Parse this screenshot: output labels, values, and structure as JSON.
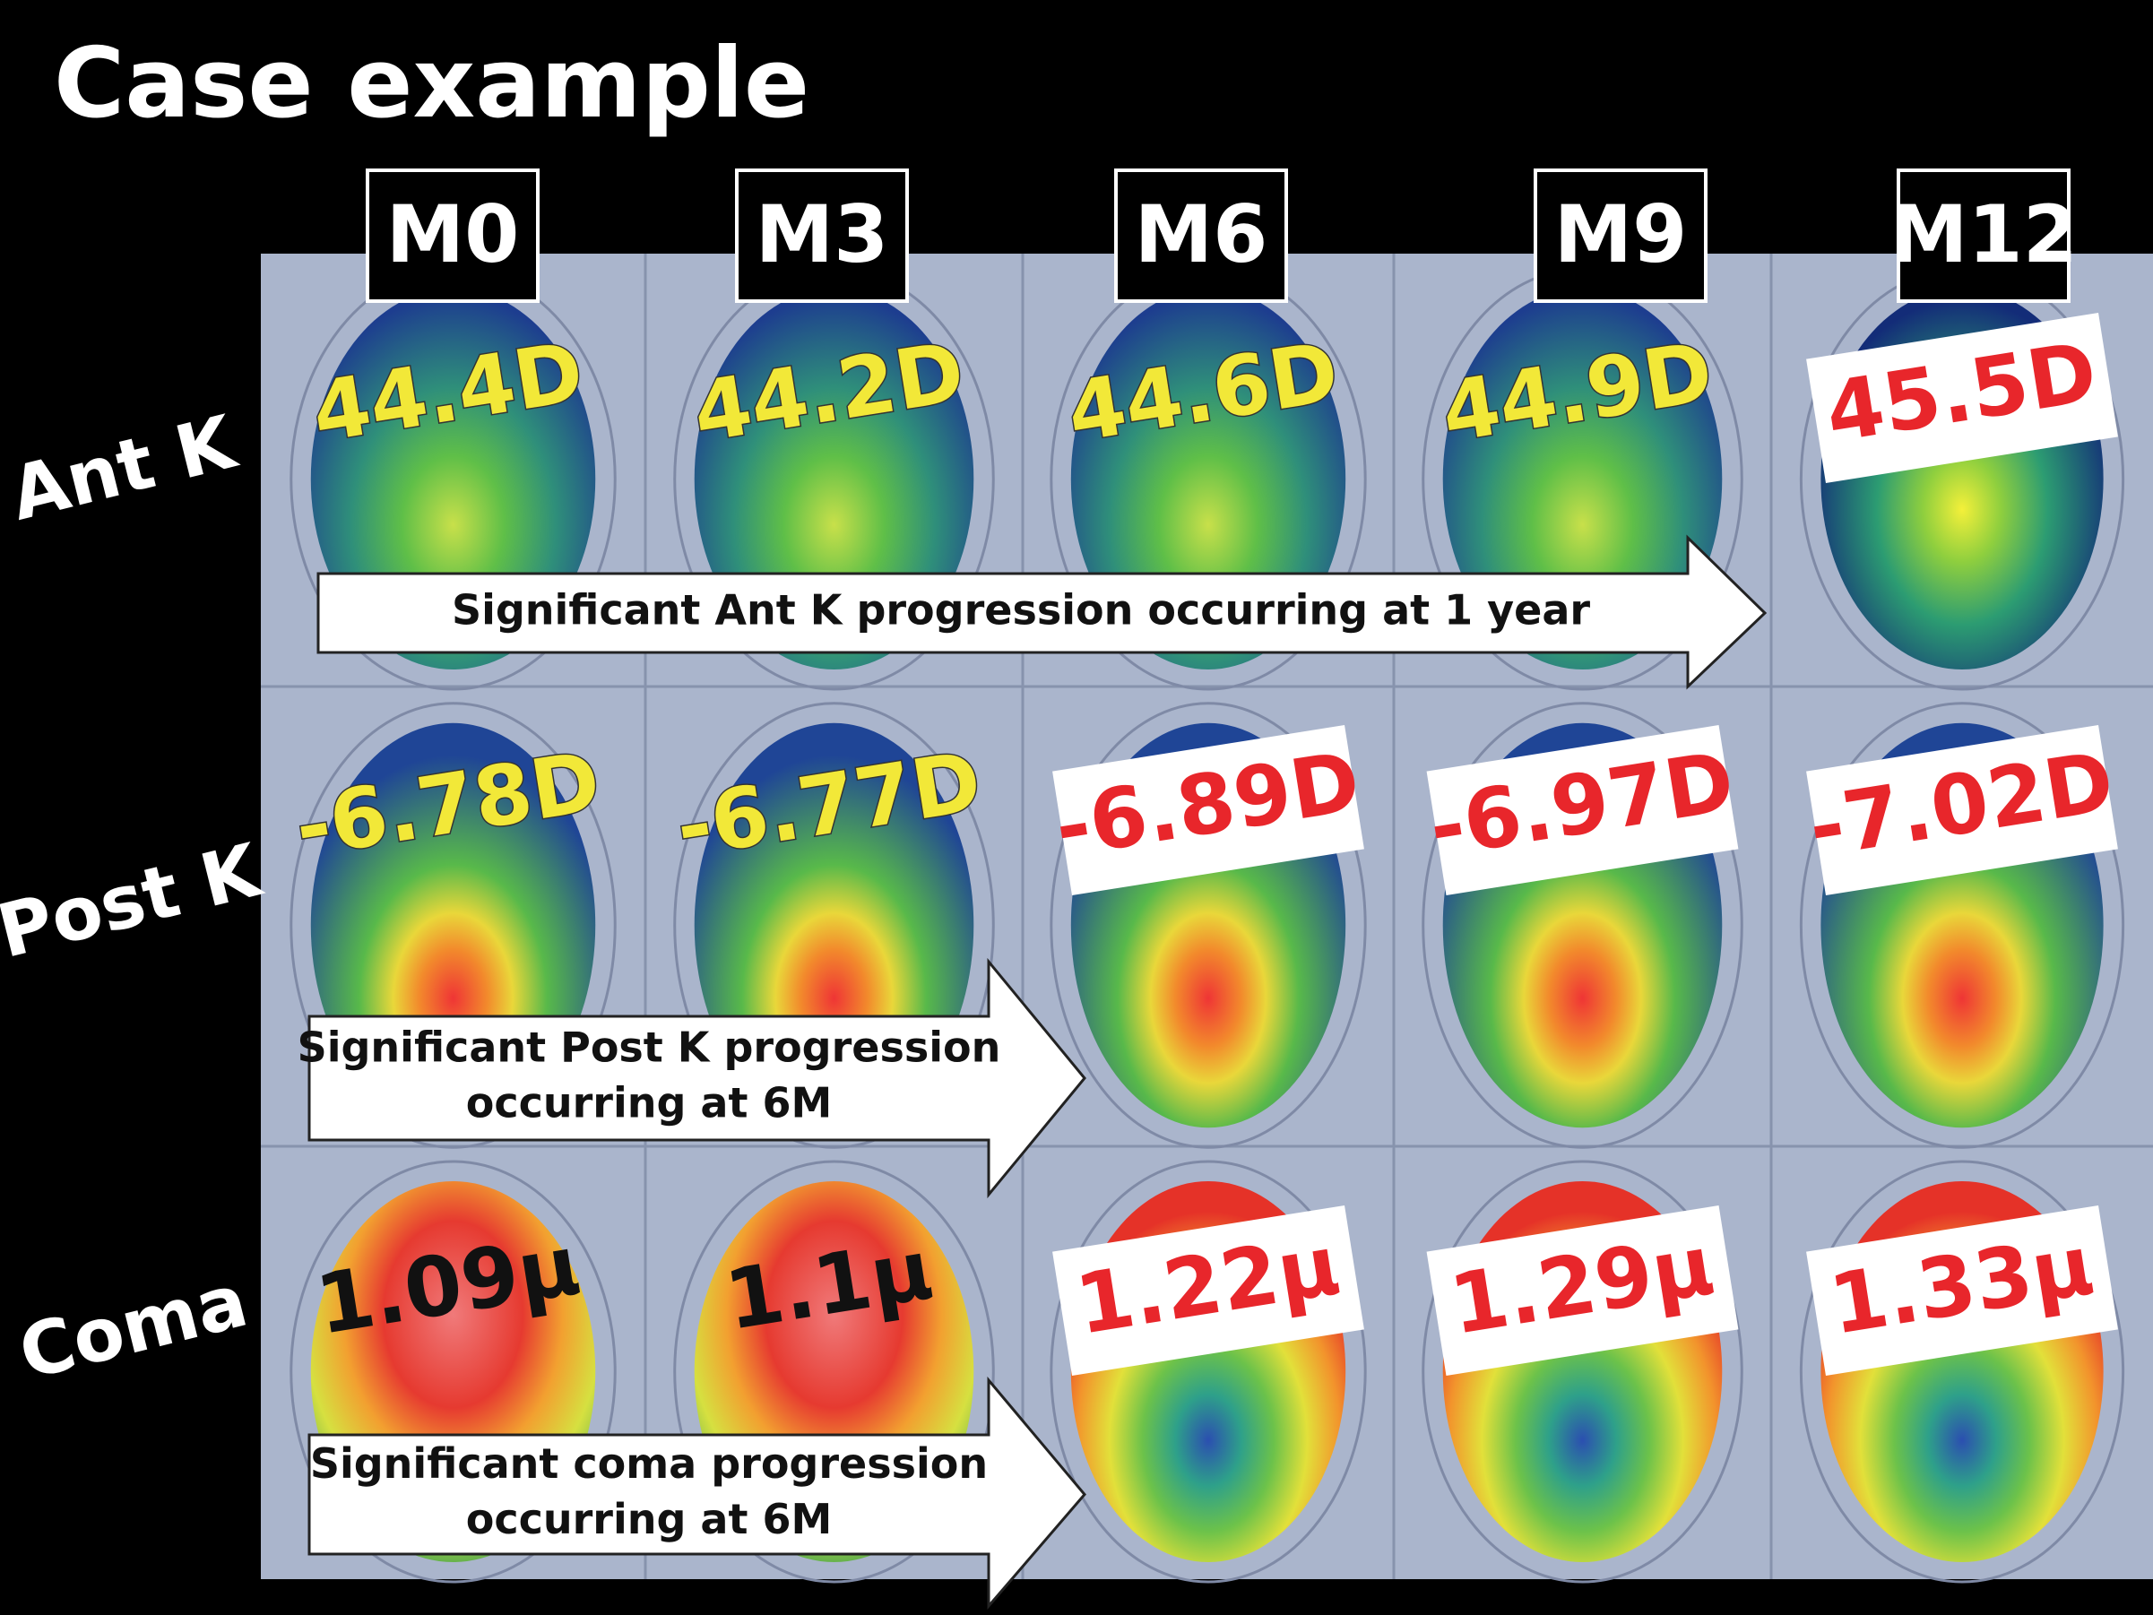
{
  "title": "Case example",
  "columns": [
    "M0",
    "M3",
    "M6",
    "M9",
    "M12"
  ],
  "rows": [
    {
      "label": "Ant K",
      "cells": [
        {
          "text": "44.4D",
          "color": "#f2e838",
          "boxed": false
        },
        {
          "text": "44.2D",
          "color": "#f2e838",
          "boxed": false
        },
        {
          "text": "44.6D",
          "color": "#f2e838",
          "boxed": false
        },
        {
          "text": "44.9D",
          "color": "#f2e838",
          "boxed": false
        },
        {
          "text": "45.5D",
          "color": "#e8262b",
          "boxed": true
        }
      ]
    },
    {
      "label": "Post K",
      "cells": [
        {
          "text": "-6.78D",
          "color": "#f2e838",
          "boxed": false
        },
        {
          "text": "-6.77D",
          "color": "#f2e838",
          "boxed": false
        },
        {
          "text": "-6.89D",
          "color": "#e8262b",
          "boxed": true
        },
        {
          "text": "-6.97D",
          "color": "#e8262b",
          "boxed": true
        },
        {
          "text": "-7.02D",
          "color": "#e8262b",
          "boxed": true
        }
      ]
    },
    {
      "label": "Coma",
      "cells": [
        {
          "text": "1.09μ",
          "color": "#111111",
          "boxed": false
        },
        {
          "text": "1.1μ",
          "color": "#111111",
          "boxed": false
        },
        {
          "text": "1.22μ",
          "color": "#e8262b",
          "boxed": true
        },
        {
          "text": "1.29μ",
          "color": "#e8262b",
          "boxed": true
        },
        {
          "text": "1.33μ",
          "color": "#e8262b",
          "boxed": true
        }
      ]
    }
  ],
  "arrows": [
    {
      "lines": [
        "Significant Ant K progression occurring at 1 year"
      ]
    },
    {
      "lines": [
        "Significant Post K progression",
        "occurring at 6M"
      ]
    },
    {
      "lines": [
        "Significant coma progression",
        "occurring at 6M"
      ]
    }
  ]
}
